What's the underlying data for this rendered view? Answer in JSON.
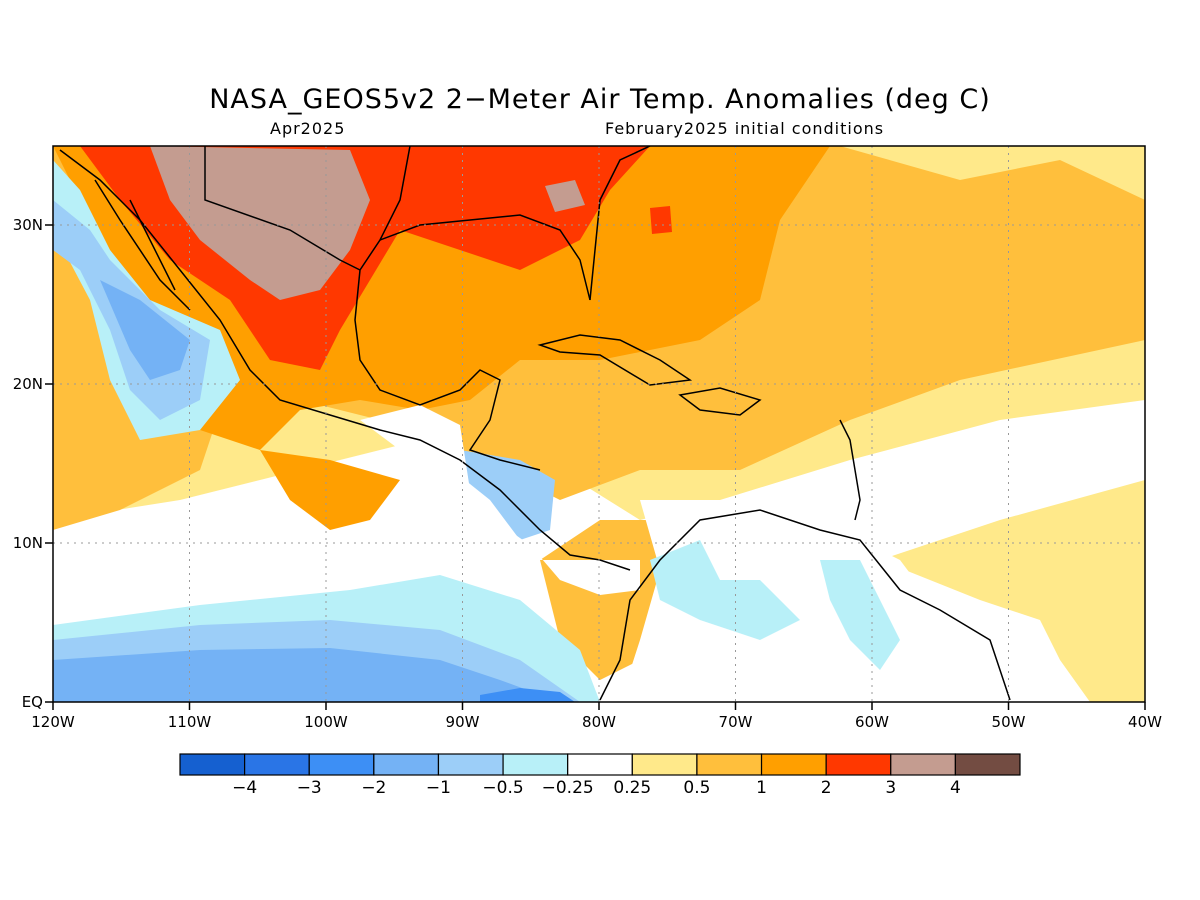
{
  "title": "NASA_GEOS5v2 2−Meter Air Temp. Anomalies (deg C)",
  "subtitle_left": "Apr2025",
  "subtitle_right": "February2025 initial conditions",
  "map": {
    "lon_ticks": [
      "120W",
      "110W",
      "100W",
      "90W",
      "80W",
      "70W",
      "60W",
      "50W",
      "40W"
    ],
    "lat_ticks": [
      "EQ",
      "10N",
      "20N",
      "30N"
    ],
    "lon_range": [
      -120,
      -40
    ],
    "lat_range": [
      0,
      35
    ],
    "grid": true
  },
  "colorbar": {
    "colors": [
      "#1560d0",
      "#2a75e6",
      "#3d8ff5",
      "#74b2f5",
      "#9ccef8",
      "#b8f0f8",
      "#ffffff",
      "#ffe98a",
      "#ffbf3c",
      "#ff9f00",
      "#ff3800",
      "#c49c90",
      "#734c42"
    ],
    "labels": [
      "−4",
      "−3",
      "−2",
      "−1",
      "−0.5",
      "−0.25",
      "0.25",
      "0.5",
      "1",
      "2",
      "3",
      "4"
    ]
  },
  "palette": {
    "coast": "#000000",
    "grid": "#999999"
  }
}
